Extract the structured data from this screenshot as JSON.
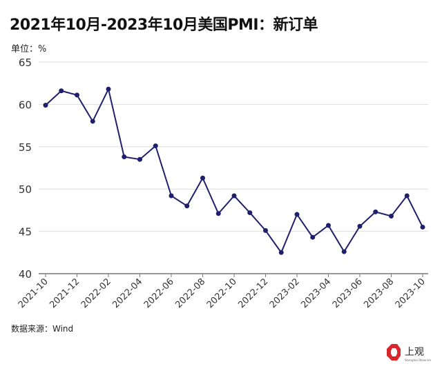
{
  "title": "2021年10月-2023年10月美国PMI：新订单",
  "unit_label": "单位：%",
  "source": "数据来源：Wind",
  "logo": {
    "text": "上观",
    "subtext": "Shanghai Observer",
    "color": "#d8262b"
  },
  "chart_data": {
    "type": "line",
    "title": "2021年10月-2023年10月美国PMI：新订单",
    "ylabel": "单位：%",
    "xlabel": "",
    "ylim": [
      40,
      65
    ],
    "yticks": [
      40,
      45,
      50,
      55,
      60,
      65
    ],
    "grid": true,
    "line_color": "#1f1f6b",
    "x": [
      "2021-10",
      "2021-11",
      "2021-12",
      "2022-01",
      "2022-02",
      "2022-03",
      "2022-04",
      "2022-05",
      "2022-06",
      "2022-07",
      "2022-08",
      "2022-09",
      "2022-10",
      "2022-11",
      "2022-12",
      "2023-01",
      "2023-02",
      "2023-03",
      "2023-04",
      "2023-05",
      "2023-06",
      "2023-07",
      "2023-08",
      "2023-09",
      "2023-10"
    ],
    "xtick_labels": [
      "2021-10",
      "2021-12",
      "2022-02",
      "2022-04",
      "2022-06",
      "2022-08",
      "2022-10",
      "2022-12",
      "2023-02",
      "2023-04",
      "2023-06",
      "2023-08",
      "2023-10"
    ],
    "values": [
      59.9,
      61.6,
      61.1,
      58.0,
      61.8,
      53.8,
      53.5,
      55.1,
      49.2,
      48.0,
      51.3,
      47.1,
      49.2,
      47.2,
      45.1,
      42.5,
      47.0,
      44.3,
      45.7,
      42.6,
      45.6,
      47.3,
      46.8,
      49.2,
      45.5
    ]
  }
}
